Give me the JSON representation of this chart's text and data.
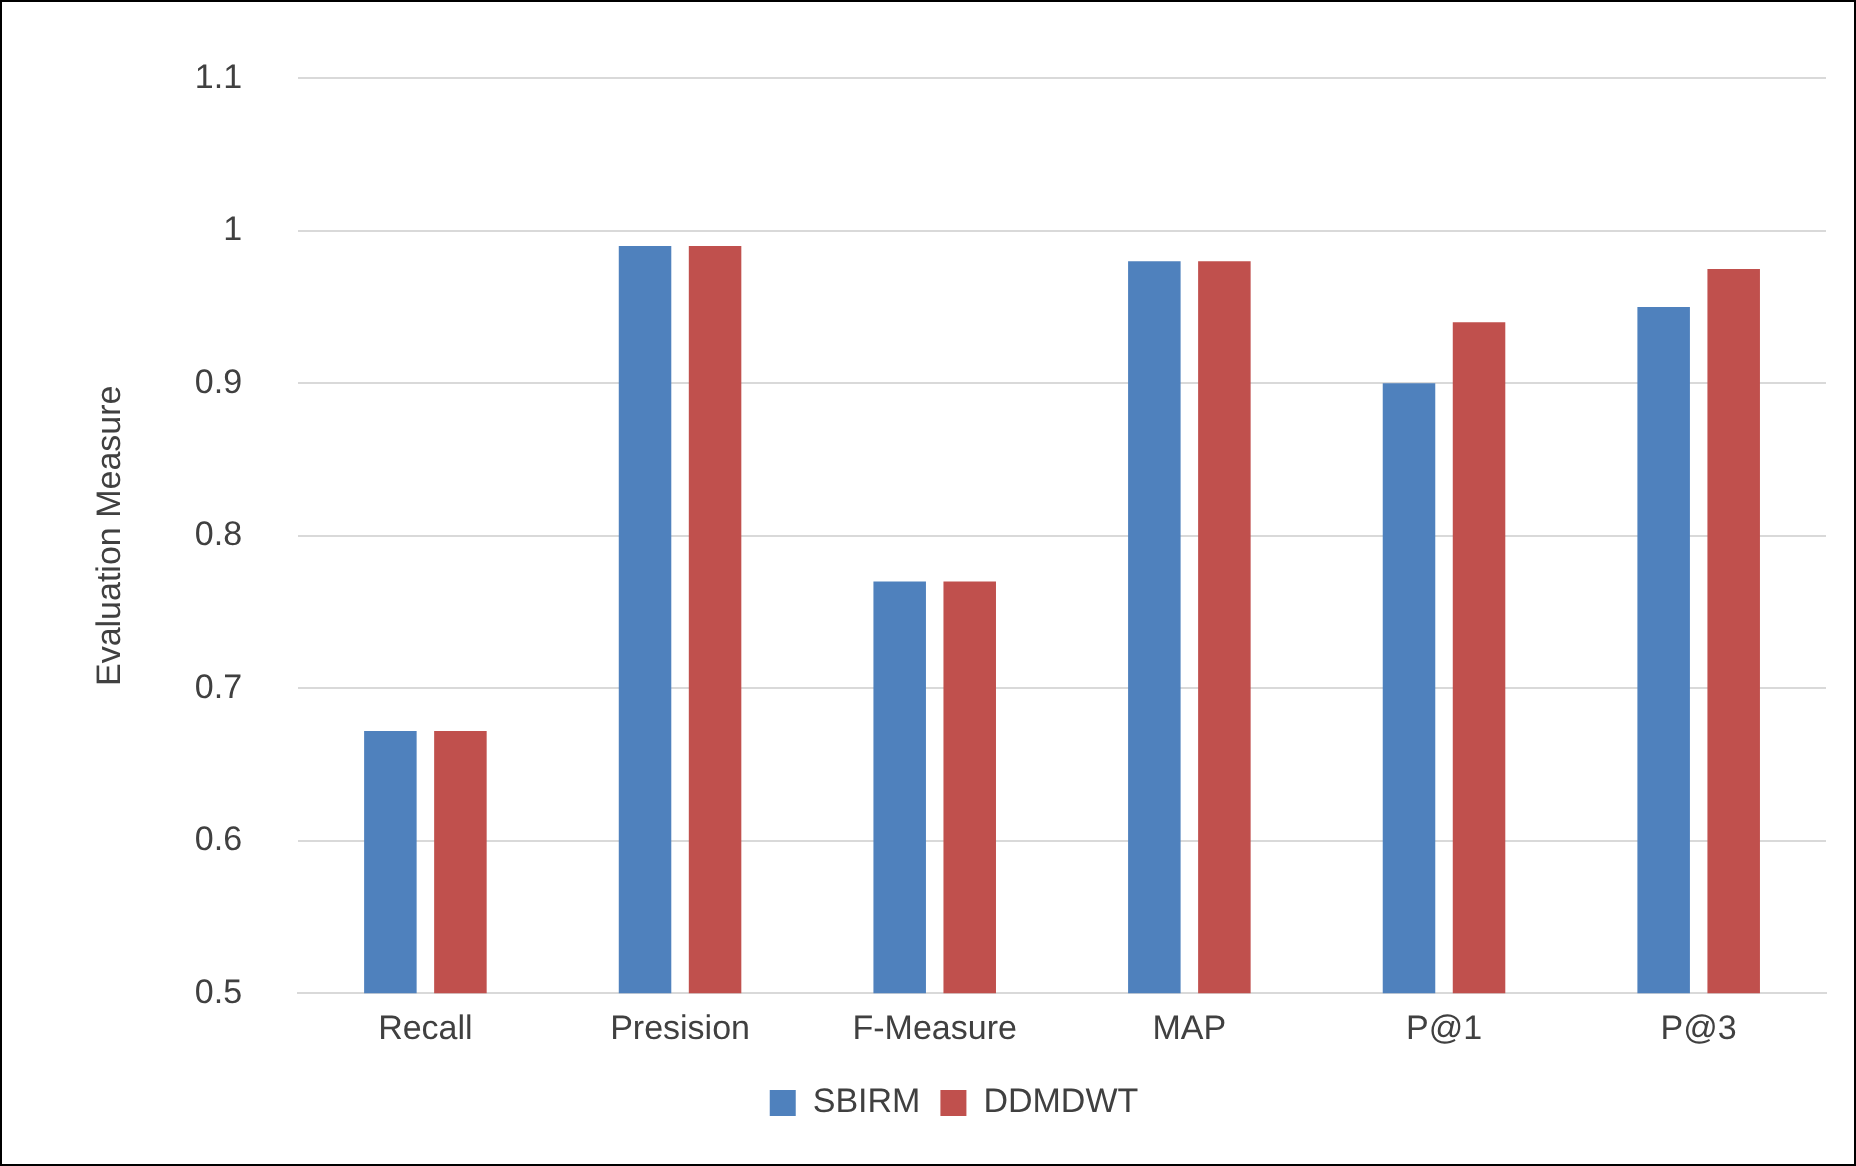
{
  "chart_data": {
    "type": "bar",
    "ylabel": "Evaluation Measure",
    "categories": [
      "Recall",
      "Presision",
      "F-Measure",
      "MAP",
      "P@1",
      "P@3"
    ],
    "series": [
      {
        "name": "SBIRM",
        "color": "#4f81bd",
        "values": [
          0.672,
          0.99,
          0.77,
          0.98,
          0.9,
          0.95
        ]
      },
      {
        "name": "DDMDWT",
        "color": "#c0504d",
        "values": [
          0.672,
          0.99,
          0.77,
          0.98,
          0.94,
          0.975
        ]
      }
    ],
    "ylim": [
      0.5,
      1.1
    ],
    "yticks": [
      0.5,
      0.6,
      0.7,
      0.8,
      0.9,
      1,
      1.1
    ],
    "grid": "y",
    "legend": "bottom"
  }
}
